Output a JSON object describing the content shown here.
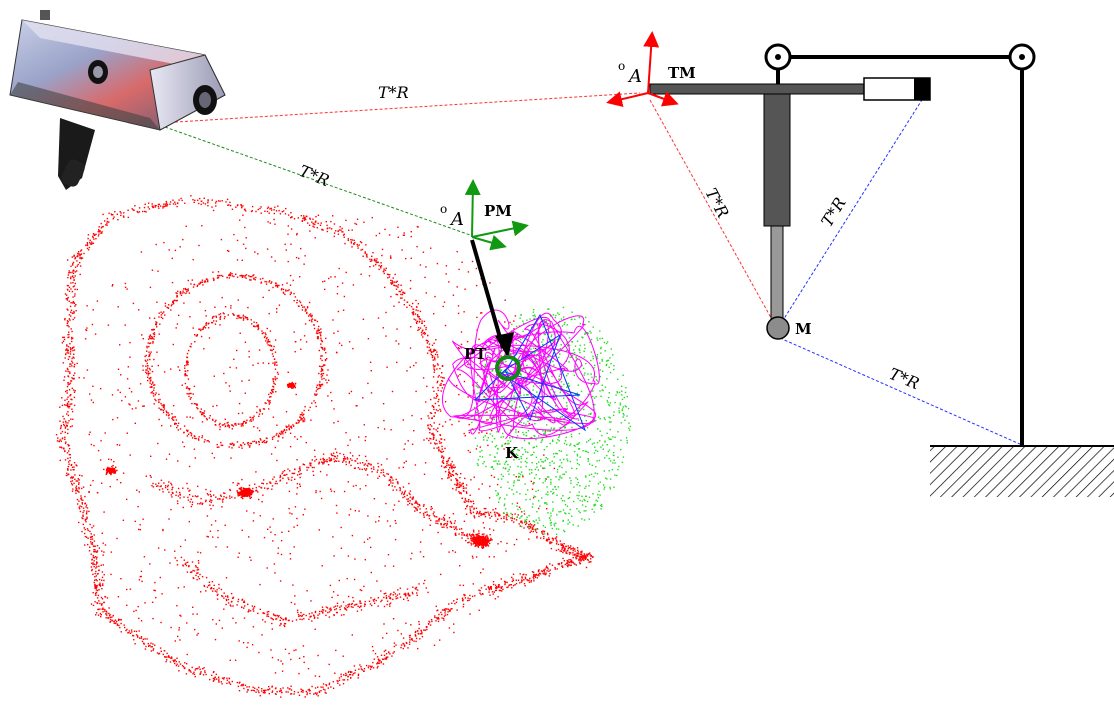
{
  "labels": {
    "tr_camera_tm": "T*R",
    "tr_camera_pm": "T*R",
    "tr_tm_m": "T*R",
    "tr_actuator_m": "T*R",
    "tr_m_ground": "T*R",
    "frame_tm_superscript": "o",
    "frame_tm_name": "A",
    "frame_tm_tag": "TM",
    "frame_pm_superscript": "o",
    "frame_pm_name": "A",
    "frame_pm_tag": "PM",
    "target_tag": "PT",
    "patch_tag": "K",
    "marker_tag": "M"
  },
  "colors": {
    "point_cloud": "#ff0000",
    "patch_cloud": "#22dd22",
    "trajectory": "#ff00ff",
    "star_path": "#0033ff",
    "frame_tm": "#ff0000",
    "frame_pm": "#119911",
    "target_ring": "#118811",
    "link_camera_tm": "#ff3333",
    "link_camera_pm": "#1a8a1a",
    "link_tm_m": "#ff3333",
    "link_blue": "#2233ff"
  },
  "icons": {
    "camera": "3d-scanner-camera-icon",
    "ground": "ground-hatch-icon",
    "pulley": "pulley-icon"
  }
}
